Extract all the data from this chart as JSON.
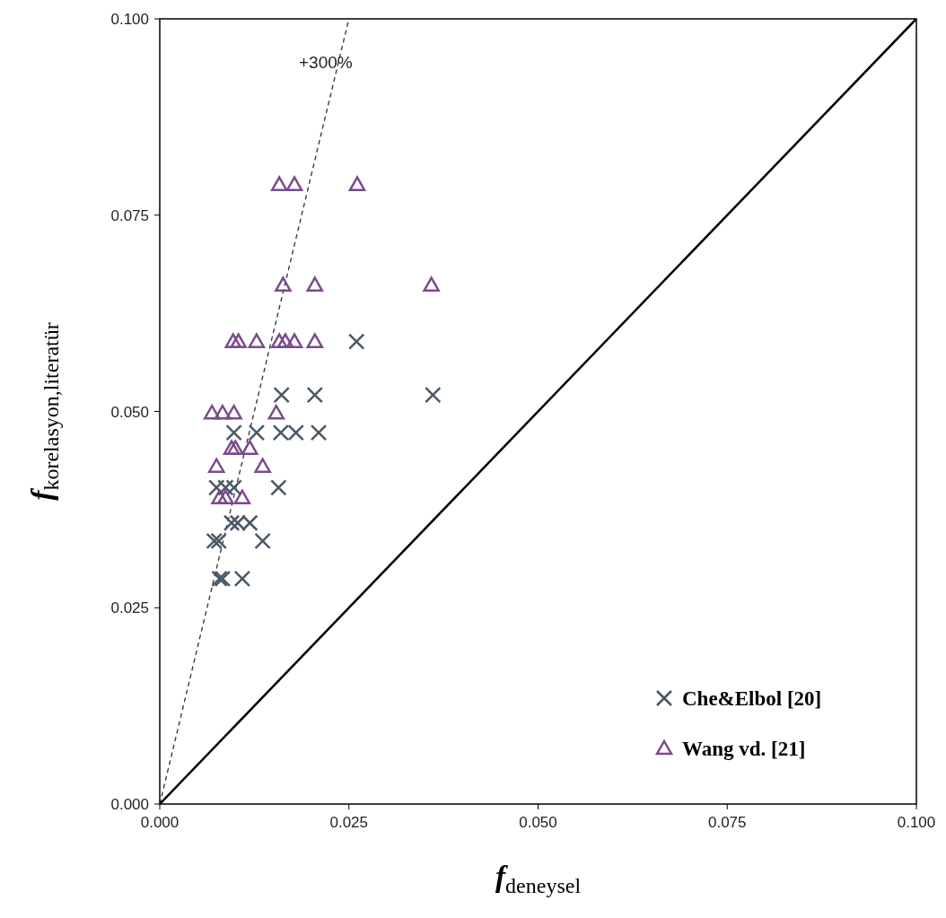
{
  "chart_data": {
    "type": "scatter",
    "xlabel": "f$_{deneysel}$",
    "ylabel": "f$_{korelasyon,literatür}$",
    "xlim": [
      0,
      0.1
    ],
    "ylim": [
      0,
      0.1
    ],
    "xticks": [
      {
        "value": 0,
        "label": "0.000"
      },
      {
        "value": 0.025,
        "label": "0.025"
      },
      {
        "value": 0.05,
        "label": "0.050"
      },
      {
        "value": 0.075,
        "label": "0.075"
      },
      {
        "value": 0.1,
        "label": "0.100"
      }
    ],
    "yticks": [
      {
        "value": 0,
        "label": "0.000"
      },
      {
        "value": 0.025,
        "label": "0.025"
      },
      {
        "value": 0.05,
        "label": "0.050"
      },
      {
        "value": 0.075,
        "label": "0.075"
      },
      {
        "value": 0.1,
        "label": "0.100"
      }
    ],
    "grid": false,
    "legend": "bottom right",
    "annotations": [
      "+300%"
    ],
    "series": [
      {
        "type": "line",
        "color": "#000000",
        "x": [
          0,
          0.1
        ],
        "values": [
          0,
          0.1
        ],
        "marker": "none",
        "line_style": "solid"
      },
      {
        "type": "line",
        "color": "#333333",
        "x": [
          0,
          0.025
        ],
        "values": [
          0,
          0.1
        ],
        "marker": "none",
        "line_style": "dashed"
      },
      {
        "name": "Che&Elbol [20]",
        "color": "#4a5866",
        "marker": "cross",
        "x": [
          0.026,
          0.0361,
          0.0161,
          0.0205,
          0.0098,
          0.0128,
          0.016,
          0.018,
          0.021,
          0.0157,
          0.0075,
          0.0087,
          0.0098,
          0.0095,
          0.0103,
          0.0119,
          0.0136,
          0.0072,
          0.0078,
          0.0079,
          0.0083,
          0.0109
        ],
        "values": [
          0.0589,
          0.0521,
          0.0521,
          0.0521,
          0.0473,
          0.0473,
          0.0473,
          0.0473,
          0.0473,
          0.0403,
          0.0403,
          0.0403,
          0.0403,
          0.0358,
          0.0358,
          0.0358,
          0.0335,
          0.0335,
          0.0335,
          0.0287,
          0.0287,
          0.0287
        ]
      },
      {
        "name": "Wang vd. [21]",
        "color": "#7b4a8c",
        "marker": "triangle",
        "x": [
          0.0158,
          0.0178,
          0.0261,
          0.0163,
          0.0205,
          0.0359,
          0.0097,
          0.0104,
          0.0128,
          0.0158,
          0.0166,
          0.0178,
          0.0205,
          0.0069,
          0.0083,
          0.0098,
          0.0154,
          0.0095,
          0.01,
          0.0119,
          0.0075,
          0.0136,
          0.0079,
          0.0087,
          0.0109
        ],
        "values": [
          0.0789,
          0.0789,
          0.0789,
          0.0661,
          0.0661,
          0.0661,
          0.0589,
          0.0589,
          0.0589,
          0.0589,
          0.0589,
          0.0589,
          0.0589,
          0.0498,
          0.0498,
          0.0498,
          0.0498,
          0.0453,
          0.0453,
          0.0453,
          0.043,
          0.043,
          0.039,
          0.039,
          0.039
        ]
      }
    ]
  }
}
